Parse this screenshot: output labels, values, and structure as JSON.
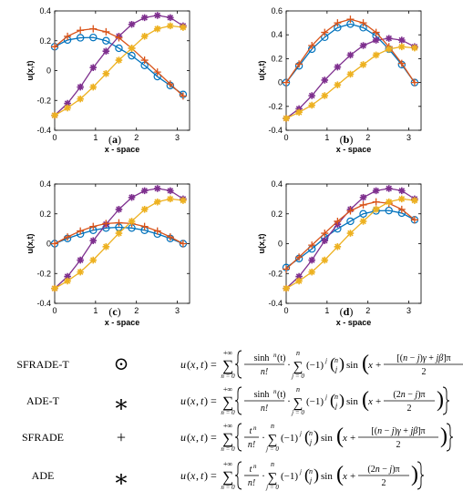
{
  "chart_data": [
    {
      "type": "line",
      "panel_label": "a",
      "xlabel": "x - space",
      "ylabel": "u(x,t)",
      "xlim": [
        0,
        3.3
      ],
      "ylim": [
        -0.4,
        0.4
      ],
      "xticks": [
        0,
        1,
        2,
        3
      ],
      "yticks": [
        -0.4,
        -0.2,
        0,
        0.2,
        0.4
      ],
      "x": [
        0,
        0.3142,
        0.6283,
        0.9425,
        1.2566,
        1.5708,
        1.885,
        2.1991,
        2.5133,
        2.8274,
        3.1416
      ],
      "series": [
        {
          "marker": "circle",
          "color": "#0072bd",
          "values": [
            0.16,
            0.205,
            0.22,
            0.222,
            0.2,
            0.15,
            0.1,
            0.035,
            -0.04,
            -0.1,
            -0.16
          ]
        },
        {
          "marker": "star",
          "color": "#7e2f8e",
          "values": [
            -0.3,
            -0.22,
            -0.11,
            0.02,
            0.13,
            0.23,
            0.31,
            0.355,
            0.37,
            0.355,
            0.3
          ]
        },
        {
          "marker": "plus",
          "color": "#d95319",
          "values": [
            0.16,
            0.23,
            0.27,
            0.28,
            0.26,
            0.22,
            0.15,
            0.07,
            -0.01,
            -0.09,
            -0.17
          ]
        },
        {
          "marker": "star",
          "color": "#edb120",
          "values": [
            -0.3,
            -0.25,
            -0.19,
            -0.11,
            -0.02,
            0.07,
            0.15,
            0.23,
            0.28,
            0.3,
            0.29
          ]
        }
      ]
    },
    {
      "type": "line",
      "panel_label": "b",
      "xlabel": "x - space",
      "ylabel": "u(x,t)",
      "xlim": [
        0,
        3.3
      ],
      "ylim": [
        -0.4,
        0.6
      ],
      "xticks": [
        0,
        1,
        2,
        3
      ],
      "yticks": [
        -0.4,
        -0.2,
        0,
        0.2,
        0.4,
        0.6
      ],
      "x": [
        0,
        0.3142,
        0.6283,
        0.9425,
        1.2566,
        1.5708,
        1.885,
        2.1991,
        2.5133,
        2.8274,
        3.1416
      ],
      "series": [
        {
          "marker": "circle",
          "color": "#0072bd",
          "values": [
            0,
            0.14,
            0.28,
            0.38,
            0.46,
            0.49,
            0.46,
            0.39,
            0.28,
            0.15,
            0
          ]
        },
        {
          "marker": "star",
          "color": "#7e2f8e",
          "values": [
            -0.3,
            -0.22,
            -0.11,
            0.02,
            0.13,
            0.23,
            0.31,
            0.355,
            0.37,
            0.355,
            0.3
          ]
        },
        {
          "marker": "plus",
          "color": "#d95319",
          "values": [
            0,
            0.155,
            0.31,
            0.42,
            0.5,
            0.53,
            0.5,
            0.42,
            0.3,
            0.16,
            0
          ]
        },
        {
          "marker": "star",
          "color": "#edb120",
          "values": [
            -0.3,
            -0.25,
            -0.19,
            -0.11,
            -0.02,
            0.07,
            0.15,
            0.23,
            0.28,
            0.3,
            0.29
          ]
        }
      ]
    },
    {
      "type": "line",
      "panel_label": "c",
      "xlabel": "x - space",
      "ylabel": "u(x,t)",
      "xlim": [
        0,
        3.3
      ],
      "ylim": [
        -0.4,
        0.4
      ],
      "xticks": [
        0,
        1,
        2,
        3
      ],
      "yticks": [
        -0.4,
        -0.2,
        0,
        0.2,
        0.4
      ],
      "x": [
        0,
        0.3142,
        0.6283,
        0.9425,
        1.2566,
        1.5708,
        1.885,
        2.1991,
        2.5133,
        2.8274,
        3.1416
      ],
      "series": [
        {
          "marker": "circle",
          "color": "#0072bd",
          "values": [
            0,
            0.035,
            0.065,
            0.09,
            0.105,
            0.11,
            0.105,
            0.09,
            0.065,
            0.035,
            0
          ]
        },
        {
          "marker": "star",
          "color": "#7e2f8e",
          "values": [
            -0.3,
            -0.22,
            -0.11,
            0.02,
            0.13,
            0.23,
            0.31,
            0.355,
            0.37,
            0.355,
            0.3
          ]
        },
        {
          "marker": "plus",
          "color": "#d95319",
          "values": [
            0,
            0.045,
            0.085,
            0.115,
            0.135,
            0.14,
            0.135,
            0.115,
            0.085,
            0.045,
            0
          ]
        },
        {
          "marker": "star",
          "color": "#edb120",
          "values": [
            -0.3,
            -0.25,
            -0.19,
            -0.11,
            -0.02,
            0.07,
            0.15,
            0.23,
            0.28,
            0.3,
            0.29
          ]
        }
      ]
    },
    {
      "type": "line",
      "panel_label": "d",
      "xlabel": "x - space",
      "ylabel": "u(x,t)",
      "xlim": [
        0,
        3.3
      ],
      "ylim": [
        -0.4,
        0.4
      ],
      "xticks": [
        0,
        1,
        2,
        3
      ],
      "yticks": [
        -0.4,
        -0.2,
        0,
        0.2,
        0.4
      ],
      "x": [
        0,
        0.3142,
        0.6283,
        0.9425,
        1.2566,
        1.5708,
        1.885,
        2.1991,
        2.5133,
        2.8274,
        3.1416
      ],
      "series": [
        {
          "marker": "circle",
          "color": "#0072bd",
          "values": [
            -0.16,
            -0.1,
            -0.035,
            0.04,
            0.1,
            0.15,
            0.2,
            0.22,
            0.222,
            0.205,
            0.16
          ]
        },
        {
          "marker": "star",
          "color": "#7e2f8e",
          "values": [
            -0.3,
            -0.22,
            -0.11,
            0.02,
            0.13,
            0.23,
            0.31,
            0.355,
            0.37,
            0.355,
            0.3
          ]
        },
        {
          "marker": "plus",
          "color": "#d95319",
          "values": [
            -0.17,
            -0.09,
            -0.01,
            0.07,
            0.15,
            0.22,
            0.26,
            0.28,
            0.27,
            0.23,
            0.16
          ]
        },
        {
          "marker": "star",
          "color": "#edb120",
          "values": [
            -0.3,
            -0.25,
            -0.19,
            -0.11,
            -0.02,
            0.07,
            0.15,
            0.23,
            0.28,
            0.3,
            0.29
          ]
        }
      ]
    }
  ],
  "legend": [
    {
      "name": "SFRADE-T",
      "symbol": "⊙",
      "trig": "sinh",
      "angle": "bracket"
    },
    {
      "name": "ADE-T",
      "symbol": "∗",
      "trig": "sinh",
      "angle": "simple"
    },
    {
      "name": "SFRADE",
      "symbol": "+",
      "trig": "t",
      "angle": "bracket"
    },
    {
      "name": "ADE",
      "symbol": "∗",
      "trig": "t",
      "angle": "simple"
    }
  ]
}
